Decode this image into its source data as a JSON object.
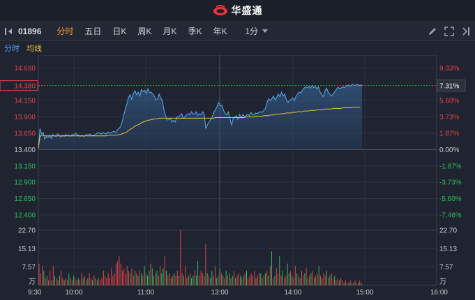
{
  "brand": {
    "name": "华盛通"
  },
  "toolbar": {
    "code": "01896",
    "tabs": [
      "分时",
      "五日",
      "日K",
      "周K",
      "月K",
      "季K",
      "年K"
    ],
    "active_tab": 0,
    "interval": "1分"
  },
  "subbar": {
    "fenshi": "分时",
    "junxian": "均线"
  },
  "price_axis": {
    "left": [
      "14.650",
      "14.150",
      "13.900",
      "13.650",
      "13.400",
      "13.150",
      "12.900",
      "12.650",
      "12.400"
    ],
    "right": [
      "9.33%",
      "5.60%",
      "3.73%",
      "1.87%",
      "0.00%",
      "-1.87%",
      "-3.73%",
      "-5.60%",
      "-7.46%"
    ]
  },
  "current": {
    "price": "14.380",
    "percent": "7.31%"
  },
  "volume_axis": {
    "labels": [
      "22.70",
      "15.13",
      "7.57"
    ],
    "unit": "万"
  },
  "time_axis": [
    "9:30",
    "10:00",
    "11:00",
    "13:00",
    "14:00",
    "15:00",
    "16:00"
  ],
  "colors": {
    "up": "#e8434a",
    "down": "#2fbf5b",
    "price_line": "#5aaaf0",
    "avg_line": "#e6c440",
    "current_marker": "#e8434a",
    "accent": "#ff9b2f"
  },
  "chart_data": {
    "type": "line",
    "y_range": [
      12.234,
      14.766
    ],
    "prev_close": 13.4,
    "x_range_minutes": [
      0,
      390
    ],
    "series": [
      {
        "values": [
          13.42,
          13.72,
          13.64,
          13.66,
          13.56,
          13.6,
          13.58,
          13.62,
          13.57,
          13.63,
          13.61,
          13.6,
          13.64,
          13.62,
          13.59,
          13.62,
          13.6,
          13.63,
          13.61,
          13.62,
          13.6,
          13.63,
          13.62,
          13.65,
          13.63,
          13.62,
          13.6,
          13.62,
          13.6,
          13.61,
          13.63,
          13.62,
          13.64,
          13.61,
          13.62,
          13.62,
          13.64,
          13.66,
          13.65,
          13.64,
          13.66,
          13.65,
          13.64,
          13.67,
          13.65,
          13.66,
          13.67,
          13.68,
          13.66,
          13.7,
          13.72,
          13.75,
          13.82,
          13.92,
          14.02,
          14.1,
          14.2,
          14.24,
          14.17,
          14.26,
          14.3,
          14.24,
          14.28,
          14.22,
          14.32,
          14.29,
          14.31,
          14.26,
          14.33,
          14.27,
          14.28,
          14.25,
          14.22,
          14.16,
          14.17,
          14.25,
          14.19,
          14.15,
          14.0,
          13.92,
          13.85,
          13.86,
          13.88,
          13.82,
          13.85,
          13.82,
          13.9,
          13.9,
          13.92,
          13.95,
          13.88,
          13.9,
          13.93,
          13.95,
          13.93,
          13.98,
          13.95,
          13.94,
          13.98,
          13.92,
          13.95,
          13.93,
          13.98,
          13.94,
          13.72,
          13.78,
          13.82,
          13.86,
          13.9,
          13.97,
          14.01,
          14.06,
          14.12,
          14.07,
          14.08,
          14.0,
          13.95,
          13.93,
          13.98,
          13.87,
          13.77,
          13.88,
          13.9,
          13.92,
          13.86,
          13.94,
          13.88,
          13.94,
          13.9,
          13.92,
          13.94,
          13.92,
          13.97,
          13.94,
          13.93,
          13.96,
          13.95,
          13.97,
          13.98,
          13.97,
          14.0,
          14.03,
          14.12,
          14.18,
          14.15,
          14.18,
          14.22,
          14.16,
          14.2,
          14.25,
          14.21,
          14.28,
          14.22,
          14.25,
          14.17,
          14.12,
          14.15,
          14.17,
          14.19,
          14.15,
          14.22,
          14.25,
          14.28,
          14.27,
          14.31,
          14.34,
          14.36,
          14.35,
          14.37,
          14.34,
          14.38,
          14.35,
          14.37,
          14.33,
          14.36,
          14.28,
          14.24,
          14.21,
          14.3,
          14.34,
          14.28,
          14.25,
          14.22,
          14.25,
          14.28,
          14.32,
          14.35,
          14.34,
          14.34,
          14.36,
          14.35,
          14.37,
          14.38,
          14.39,
          14.37,
          14.4,
          14.38,
          14.39,
          14.4,
          14.38,
          14.39,
          14.38
        ]
      },
      {
        "values": [
          13.42,
          13.6,
          13.62,
          13.62,
          13.61,
          13.61,
          13.61,
          13.61,
          13.61,
          13.61,
          13.61,
          13.61,
          13.61,
          13.61,
          13.61,
          13.61,
          13.61,
          13.61,
          13.61,
          13.61,
          13.61,
          13.61,
          13.61,
          13.61,
          13.61,
          13.61,
          13.61,
          13.61,
          13.61,
          13.61,
          13.61,
          13.61,
          13.61,
          13.61,
          13.61,
          13.61,
          13.61,
          13.61,
          13.61,
          13.61,
          13.61,
          13.61,
          13.61,
          13.62,
          13.62,
          13.62,
          13.62,
          13.62,
          13.62,
          13.62,
          13.63,
          13.63,
          13.64,
          13.65,
          13.66,
          13.67,
          13.69,
          13.71,
          13.72,
          13.74,
          13.76,
          13.77,
          13.78,
          13.79,
          13.81,
          13.82,
          13.83,
          13.84,
          13.85,
          13.85,
          13.86,
          13.86,
          13.87,
          13.87,
          13.87,
          13.88,
          13.88,
          13.88,
          13.88,
          13.88,
          13.88,
          13.88,
          13.88,
          13.88,
          13.88,
          13.88,
          13.88,
          13.88,
          13.88,
          13.88,
          13.88,
          13.88,
          13.88,
          13.88,
          13.88,
          13.88,
          13.88,
          13.88,
          13.88,
          13.88,
          13.88,
          13.88,
          13.88,
          13.88,
          13.88,
          13.88,
          13.88,
          13.88,
          13.88,
          13.88,
          13.89,
          13.89,
          13.89,
          13.89,
          13.89,
          13.89,
          13.89,
          13.89,
          13.89,
          13.89,
          13.89,
          13.89,
          13.89,
          13.89,
          13.89,
          13.89,
          13.89,
          13.89,
          13.89,
          13.9,
          13.9,
          13.9,
          13.9,
          13.9,
          13.9,
          13.91,
          13.91,
          13.91,
          13.91,
          13.91,
          13.92,
          13.92,
          13.92,
          13.92,
          13.93,
          13.93,
          13.93,
          13.94,
          13.94,
          13.94,
          13.94,
          13.95,
          13.95,
          13.95,
          13.96,
          13.96,
          13.96,
          13.96,
          13.97,
          13.97,
          13.97,
          13.98,
          13.98,
          13.98,
          13.98,
          13.99,
          13.99,
          13.99,
          13.99,
          14.0,
          14.0,
          14.0,
          14.0,
          14.01,
          14.01,
          14.01,
          14.01,
          14.01,
          14.02,
          14.02,
          14.02,
          14.02,
          14.02,
          14.03,
          14.03,
          14.03,
          14.03,
          14.03,
          14.03,
          14.04,
          14.04,
          14.04,
          14.04,
          14.04,
          14.04,
          14.05,
          14.05,
          14.05,
          14.05,
          14.05,
          14.05
        ]
      }
    ],
    "volume": {
      "y_max": 22.7,
      "values": [
        9,
        5,
        8,
        6,
        3,
        4,
        2,
        6,
        2,
        8,
        4,
        3,
        2,
        4,
        6,
        3,
        2,
        3,
        2,
        5,
        3,
        2,
        4,
        3,
        2,
        3,
        2,
        5,
        3,
        4,
        2,
        3,
        5,
        3,
        2,
        4,
        3,
        2,
        3,
        2,
        3,
        6,
        4,
        3,
        5,
        3,
        7,
        4,
        5,
        9,
        10,
        12,
        9,
        6,
        7,
        5,
        8,
        6,
        5,
        7,
        4,
        6,
        5,
        4,
        6,
        5,
        4,
        8,
        5,
        4,
        6,
        9,
        7,
        4,
        5,
        6,
        4,
        8,
        5,
        7,
        12,
        6,
        4,
        5,
        3,
        4,
        5,
        4,
        6,
        4,
        22.7,
        5,
        4,
        8,
        3,
        4,
        5,
        3,
        4,
        6,
        4,
        10,
        4,
        6,
        5,
        4,
        17,
        5,
        4,
        3,
        6,
        4,
        8,
        3,
        4,
        7,
        5,
        4,
        3,
        6,
        4,
        5,
        3,
        4,
        6,
        3,
        4,
        5,
        4,
        3,
        4,
        5,
        6,
        3,
        4,
        5,
        4,
        6,
        3,
        4,
        5,
        5,
        3,
        4,
        5,
        6,
        4,
        8,
        14,
        3,
        4,
        7,
        5,
        12,
        4,
        6,
        3,
        4,
        9,
        5,
        6,
        4,
        3,
        8,
        5,
        4,
        3,
        6,
        4,
        5,
        7,
        3,
        4,
        5,
        6,
        3,
        4,
        5,
        8,
        4,
        3,
        5,
        4,
        6,
        3,
        4,
        5,
        3,
        4,
        2,
        3,
        2,
        3,
        2,
        1,
        2,
        1,
        1,
        2,
        1,
        1,
        2,
        1,
        1,
        2,
        1
      ],
      "up": [
        1,
        1,
        1,
        0,
        1,
        0,
        1,
        1,
        0,
        1,
        0,
        1,
        1,
        0,
        1,
        1,
        0,
        1,
        1,
        0,
        1,
        1,
        0,
        1,
        1,
        0,
        1,
        1,
        0,
        1,
        1,
        0,
        1,
        1,
        0,
        1,
        1,
        0,
        1,
        1,
        1,
        1,
        1,
        1,
        1,
        1,
        1,
        1,
        1,
        1,
        1,
        1,
        1,
        1,
        1,
        1,
        1,
        1,
        0,
        1,
        1,
        0,
        1,
        0,
        1,
        0,
        1,
        0,
        1,
        0,
        0,
        1,
        0,
        0,
        1,
        0,
        1,
        1,
        0,
        0,
        1,
        0,
        1,
        1,
        0,
        1,
        0,
        1,
        1,
        0,
        1,
        1,
        0,
        1,
        1,
        0,
        1,
        0,
        0,
        1,
        0,
        0,
        1,
        1,
        1,
        0,
        1,
        0,
        1,
        0,
        0,
        1,
        1,
        0,
        1,
        0,
        1,
        0,
        1,
        0,
        1,
        0,
        1,
        0,
        1,
        0,
        1,
        1,
        0,
        1,
        0,
        1,
        0,
        1,
        1,
        1,
        1,
        1,
        0,
        1,
        1,
        0,
        1,
        1,
        0,
        1,
        0,
        1,
        0,
        1,
        0,
        1,
        1,
        0,
        1,
        0,
        1,
        1,
        0,
        0,
        1,
        0,
        1,
        1,
        0,
        1,
        0,
        1,
        1,
        0,
        1,
        0,
        1,
        0,
        1,
        0,
        1,
        1,
        0,
        1,
        0,
        1,
        1,
        0,
        1,
        0,
        1,
        1,
        0,
        1,
        1,
        0,
        1,
        1,
        0,
        1,
        1,
        0,
        1,
        1,
        0,
        1,
        1,
        0,
        1
      ]
    }
  }
}
